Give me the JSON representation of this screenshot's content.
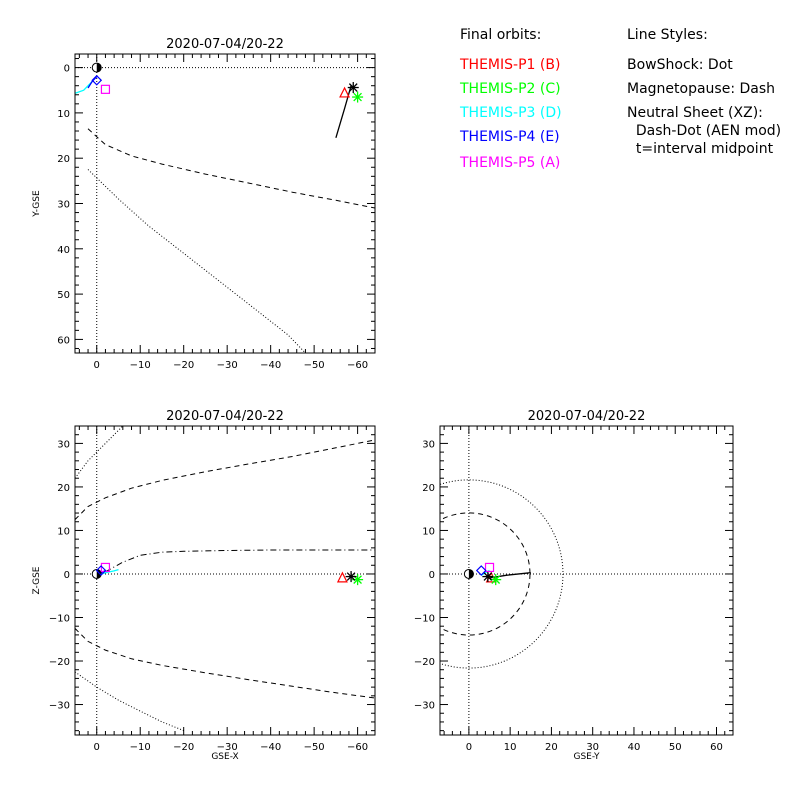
{
  "legend": {
    "orbits_title": "Final orbits:",
    "styles_title": "Line Styles:",
    "probes": [
      {
        "label": "THEMIS-P1 (B)",
        "color": "#ff0000"
      },
      {
        "label": "THEMIS-P2 (C)",
        "color": "#00ff00"
      },
      {
        "label": "THEMIS-P3 (D)",
        "color": "#00ffff"
      },
      {
        "label": "THEMIS-P4 (E)",
        "color": "#0000ff"
      },
      {
        "label": "THEMIS-P5 (A)",
        "color": "#ff00ff"
      }
    ],
    "styles": [
      "BowShock: Dot",
      "Magnetopause: Dash",
      "Neutral Sheet (XZ):",
      "  Dash-Dot (AEN mod)",
      "  t=interval midpoint"
    ]
  },
  "chart_data": [
    {
      "type": "line",
      "title": "2020-07-04/20-22",
      "xlabel": "",
      "ylabel": "Y-GSE",
      "xlim": [
        5,
        -64
      ],
      "ylim": [
        63,
        -3
      ],
      "xticks": [
        0,
        -10,
        -20,
        -30,
        -40,
        -50,
        -60
      ],
      "yticks": [
        0,
        10,
        20,
        30,
        40,
        50,
        60
      ],
      "grid": false,
      "reference_lines": {
        "x": 0,
        "y": 0
      },
      "series": [
        {
          "role": "bowshock",
          "style": "dot",
          "x": [
            2,
            -5,
            -12,
            -20,
            -28,
            -36,
            -44,
            -48
          ],
          "y": [
            22.5,
            29,
            35,
            41,
            47,
            53,
            59,
            63
          ]
        },
        {
          "role": "magnetopause",
          "style": "dash",
          "x": [
            2,
            -2,
            -8,
            -15,
            -25,
            -35,
            -45,
            -55,
            -64
          ],
          "y": [
            13.5,
            17,
            19.5,
            21.3,
            23.5,
            25.5,
            27.5,
            29.3,
            31
          ]
        },
        {
          "role": "trace-P3",
          "style": "solid",
          "color": "#00ffff",
          "x": [
            1,
            3,
            6
          ],
          "y": [
            3,
            5,
            6
          ]
        },
        {
          "role": "trace-P4",
          "style": "solid",
          "color": "#0000ff",
          "x": [
            0,
            1,
            2
          ],
          "y": [
            2,
            3,
            4.5
          ]
        },
        {
          "role": "trace-black",
          "style": "solid",
          "color": "#000000",
          "x": [
            -58.5,
            -57,
            -55
          ],
          "y": [
            4,
            9,
            15.5
          ]
        }
      ],
      "markers": [
        {
          "symbol": "earth",
          "x": 0,
          "y": 0
        },
        {
          "symbol": "triangle",
          "color": "#ff0000",
          "x": -57,
          "y": 5.6
        },
        {
          "symbol": "asterisk",
          "color": "#00ff00",
          "x": -60,
          "y": 6.5
        },
        {
          "symbol": "asterisk",
          "color": "#000000",
          "x": -59,
          "y": 4.4
        },
        {
          "symbol": "square",
          "color": "#ff00ff",
          "x": -2,
          "y": 4.8
        },
        {
          "symbol": "diamond",
          "color": "#0000ff",
          "x": 0,
          "y": 2.8
        }
      ]
    },
    {
      "type": "line",
      "title": "2020-07-04/20-22",
      "xlabel": "GSE-X",
      "ylabel": "Z-GSE",
      "xlim": [
        5,
        -64
      ],
      "ylim": [
        -37,
        34
      ],
      "xticks": [
        0,
        -10,
        -20,
        -30,
        -40,
        -50,
        -60
      ],
      "yticks": [
        -30,
        -20,
        -10,
        0,
        10,
        20,
        30
      ],
      "grid": false,
      "reference_lines": {
        "x": 0,
        "y": 0
      },
      "series": [
        {
          "role": "bowshock-north",
          "style": "dot",
          "x": [
            5,
            2,
            -2,
            -6
          ],
          "y": [
            22,
            26,
            30,
            34
          ]
        },
        {
          "role": "bowshock-south",
          "style": "dot",
          "x": [
            5,
            0,
            -5,
            -10,
            -15,
            -20
          ],
          "y": [
            -22.5,
            -26,
            -29,
            -31.5,
            -34,
            -36
          ]
        },
        {
          "role": "magnetopause-north",
          "style": "dash",
          "x": [
            5,
            2,
            -2,
            -8,
            -15,
            -25,
            -35,
            -45,
            -55,
            -64
          ],
          "y": [
            12.5,
            15.5,
            17.5,
            19.7,
            21.5,
            23.5,
            25.3,
            27,
            29,
            30.8
          ]
        },
        {
          "role": "magnetopause-south",
          "style": "dash",
          "x": [
            5,
            2,
            -2,
            -8,
            -15,
            -25,
            -35,
            -45,
            -55,
            -64
          ],
          "y": [
            -12.5,
            -15.5,
            -17.5,
            -19.5,
            -21,
            -22.7,
            -24.3,
            -25.8,
            -27.3,
            -28.5
          ]
        },
        {
          "role": "neutral-sheet",
          "style": "dashdot",
          "x": [
            -2,
            -6,
            -10,
            -15,
            -20,
            -30,
            -40,
            -50,
            -64
          ],
          "y": [
            0.5,
            2.7,
            4.3,
            5,
            5.2,
            5.4,
            5.5,
            5.5,
            5.5
          ]
        },
        {
          "role": "trace-P3",
          "style": "solid",
          "color": "#00ffff",
          "x": [
            0,
            -2,
            -4,
            -5
          ],
          "y": [
            -0.5,
            0.3,
            0.7,
            1
          ]
        },
        {
          "role": "trace-P4",
          "style": "solid",
          "color": "#0000ff",
          "x": [
            0,
            -1,
            -2
          ],
          "y": [
            -0.4,
            0.3,
            0.8
          ]
        }
      ],
      "markers": [
        {
          "symbol": "earth",
          "x": 0,
          "y": 0
        },
        {
          "symbol": "triangle",
          "color": "#ff0000",
          "x": -56.5,
          "y": -0.9
        },
        {
          "symbol": "asterisk",
          "color": "#00ff00",
          "x": -60,
          "y": -1.3
        },
        {
          "symbol": "asterisk",
          "color": "#000000",
          "x": -58.5,
          "y": -0.6
        },
        {
          "symbol": "square",
          "color": "#ff00ff",
          "x": -2,
          "y": 1.5
        },
        {
          "symbol": "diamond",
          "color": "#0000ff",
          "x": -1,
          "y": 0.8
        }
      ]
    },
    {
      "type": "line",
      "title": "2020-07-04/20-22",
      "xlabel": "GSE-Y",
      "ylabel": "",
      "xlim": [
        -7,
        64
      ],
      "ylim": [
        -37,
        34
      ],
      "xticks": [
        0,
        10,
        20,
        30,
        40,
        50,
        60
      ],
      "yticks": [
        -30,
        -20,
        -10,
        0,
        10,
        20,
        30
      ],
      "grid": false,
      "reference_lines": {
        "x": 0,
        "y": 0
      },
      "series": [
        {
          "role": "bowshock-circle",
          "style": "dot",
          "circle": {
            "cx": 0,
            "cy": 0,
            "r": 22.8
          }
        },
        {
          "role": "magnetopause-circle",
          "style": "dash",
          "circle": {
            "cx": 0,
            "cy": 0,
            "r": 14.8
          }
        },
        {
          "role": "trace-black",
          "style": "solid",
          "color": "#000000",
          "x": [
            4.5,
            9,
            15
          ],
          "y": [
            -1,
            -0.3,
            0.3
          ]
        },
        {
          "role": "trace-P3",
          "style": "solid",
          "color": "#00ffff",
          "x": [
            3,
            4,
            5
          ],
          "y": [
            -0.3,
            0.3,
            0.8
          ]
        }
      ],
      "markers": [
        {
          "symbol": "earth",
          "x": 0,
          "y": 0
        },
        {
          "symbol": "triangle",
          "color": "#ff0000",
          "x": 5.4,
          "y": -0.9
        },
        {
          "symbol": "asterisk",
          "color": "#00ff00",
          "x": 6.5,
          "y": -1.3
        },
        {
          "symbol": "asterisk",
          "color": "#000000",
          "x": 4.6,
          "y": -0.6
        },
        {
          "symbol": "square",
          "color": "#ff00ff",
          "x": 5,
          "y": 1.5
        },
        {
          "symbol": "diamond",
          "color": "#0000ff",
          "x": 3,
          "y": 0.8
        }
      ]
    }
  ]
}
